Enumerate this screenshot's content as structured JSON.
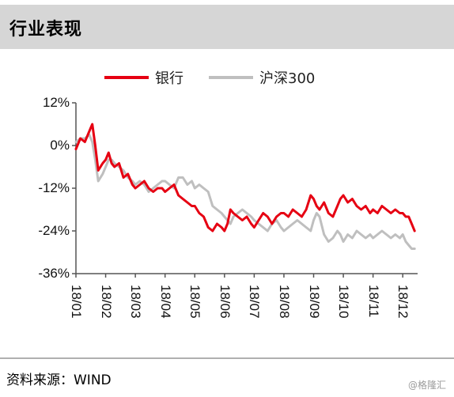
{
  "header": {
    "title": "行业表现"
  },
  "footer": {
    "source": "资料来源：WIND",
    "watermark": "@格隆汇"
  },
  "colors": {
    "bank": "#e60012",
    "index": "#bfbfbf",
    "header_bg": "#d6d6d6"
  },
  "chart_data": {
    "type": "line",
    "title": "",
    "xlabel": "",
    "ylabel": "",
    "ylim": [
      -36,
      12
    ],
    "yticks": [
      "12%",
      "0%",
      "-12%",
      "-24%",
      "-36%"
    ],
    "ytick_values": [
      12,
      0,
      -12,
      -24,
      -36
    ],
    "categories": [
      "18/01",
      "18/02",
      "18/03",
      "18/04",
      "18/05",
      "18/06",
      "18/07",
      "18/08",
      "18/09",
      "18/10",
      "18/11",
      "18/12"
    ],
    "legend_position": "top",
    "grid": false,
    "series": [
      {
        "name": "银行",
        "x": [
          0,
          0.15,
          0.3,
          0.45,
          0.55,
          0.65,
          0.75,
          0.9,
          1.0,
          1.1,
          1.2,
          1.3,
          1.45,
          1.6,
          1.75,
          1.9,
          2.0,
          2.15,
          2.3,
          2.45,
          2.6,
          2.75,
          2.9,
          3.0,
          3.15,
          3.3,
          3.45,
          3.6,
          3.75,
          3.9,
          4.0,
          4.15,
          4.3,
          4.45,
          4.6,
          4.75,
          4.9,
          5.0,
          5.1,
          5.2,
          5.3,
          5.45,
          5.6,
          5.75,
          5.9,
          6.0,
          6.15,
          6.3,
          6.45,
          6.6,
          6.75,
          6.9,
          7.0,
          7.15,
          7.3,
          7.45,
          7.6,
          7.75,
          7.9,
          8.0,
          8.1,
          8.2,
          8.35,
          8.5,
          8.65,
          8.8,
          8.9,
          9.0,
          9.15,
          9.3,
          9.45,
          9.6,
          9.75,
          9.9,
          10.0,
          10.15,
          10.3,
          10.45,
          10.6,
          10.75,
          10.9,
          11.0,
          11.1,
          11.2,
          11.3,
          11.4
        ],
        "values": [
          -1,
          2,
          1,
          4,
          6,
          0,
          -7,
          -5,
          -4,
          -2,
          -5,
          -6,
          -5,
          -9,
          -8,
          -11,
          -12,
          -11,
          -10,
          -12,
          -13,
          -12,
          -12,
          -13,
          -12,
          -11,
          -14,
          -15,
          -16,
          -17,
          -17,
          -19,
          -20,
          -23,
          -24,
          -22,
          -23,
          -24,
          -22,
          -18,
          -19,
          -20,
          -21,
          -20,
          -22,
          -23,
          -21,
          -19,
          -20,
          -22,
          -20,
          -19,
          -19,
          -20,
          -18,
          -19,
          -20,
          -18,
          -14,
          -15,
          -17,
          -18,
          -16,
          -19,
          -20,
          -17,
          -15,
          -14,
          -16,
          -15,
          -17,
          -18,
          -17,
          -19,
          -18,
          -19,
          -17,
          -18,
          -19,
          -18,
          -19,
          -19,
          -20,
          -20,
          -22,
          -24
        ]
      },
      {
        "name": "沪深300",
        "x": [
          0,
          0.15,
          0.3,
          0.45,
          0.55,
          0.65,
          0.75,
          0.9,
          1.0,
          1.1,
          1.2,
          1.3,
          1.45,
          1.6,
          1.75,
          1.9,
          2.0,
          2.15,
          2.3,
          2.45,
          2.6,
          2.75,
          2.9,
          3.0,
          3.15,
          3.3,
          3.45,
          3.6,
          3.75,
          3.9,
          4.0,
          4.15,
          4.3,
          4.45,
          4.6,
          4.75,
          4.9,
          5.0,
          5.1,
          5.2,
          5.3,
          5.45,
          5.6,
          5.75,
          5.9,
          6.0,
          6.15,
          6.3,
          6.45,
          6.6,
          6.75,
          6.9,
          7.0,
          7.15,
          7.3,
          7.45,
          7.6,
          7.75,
          7.9,
          8.0,
          8.1,
          8.2,
          8.35,
          8.5,
          8.65,
          8.8,
          8.9,
          9.0,
          9.15,
          9.3,
          9.45,
          9.6,
          9.75,
          9.9,
          10.0,
          10.15,
          10.3,
          10.45,
          10.6,
          10.75,
          10.9,
          11.0,
          11.1,
          11.2,
          11.3,
          11.4
        ],
        "values": [
          1,
          2,
          2,
          3,
          1,
          -4,
          -10,
          -8,
          -6,
          -4,
          -4,
          -5,
          -6,
          -7,
          -9,
          -10,
          -11,
          -10,
          -11,
          -13,
          -12,
          -11,
          -10,
          -10,
          -11,
          -12,
          -9,
          -9,
          -11,
          -10,
          -12,
          -11,
          -12,
          -13,
          -17,
          -18,
          -19,
          -20,
          -21,
          -22,
          -20,
          -19,
          -18,
          -19,
          -20,
          -21,
          -22,
          -23,
          -24,
          -22,
          -21,
          -23,
          -24,
          -23,
          -22,
          -21,
          -22,
          -23,
          -24,
          -21,
          -19,
          -20,
          -25,
          -27,
          -26,
          -24,
          -25,
          -27,
          -25,
          -26,
          -24,
          -25,
          -26,
          -25,
          -26,
          -25,
          -24,
          -25,
          -26,
          -25,
          -26,
          -25,
          -27,
          -28,
          -29,
          -29
        ]
      }
    ]
  }
}
